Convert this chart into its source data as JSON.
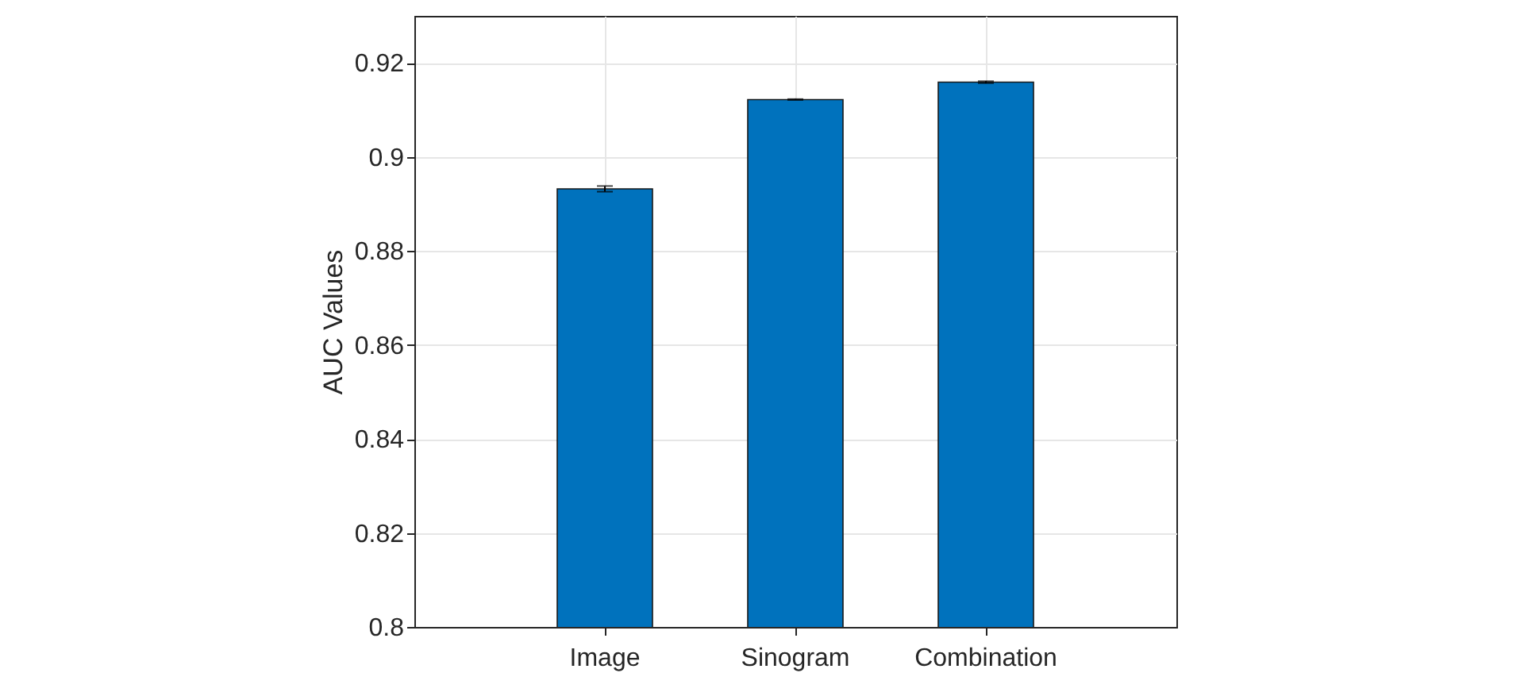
{
  "chart_data": {
    "type": "bar",
    "ylabel": "AUC Values",
    "categories": [
      "Image",
      "Sinogram",
      "Combination"
    ],
    "values": [
      0.8932,
      0.9122,
      0.9159
    ],
    "errors": [
      0.0006,
      0.0001,
      0.0002
    ],
    "color": "#0072bd",
    "ylim": [
      0.8,
      0.93
    ],
    "yticks": [
      0.8,
      0.82,
      0.84,
      0.86,
      0.88,
      0.9,
      0.92
    ],
    "grid": true
  }
}
